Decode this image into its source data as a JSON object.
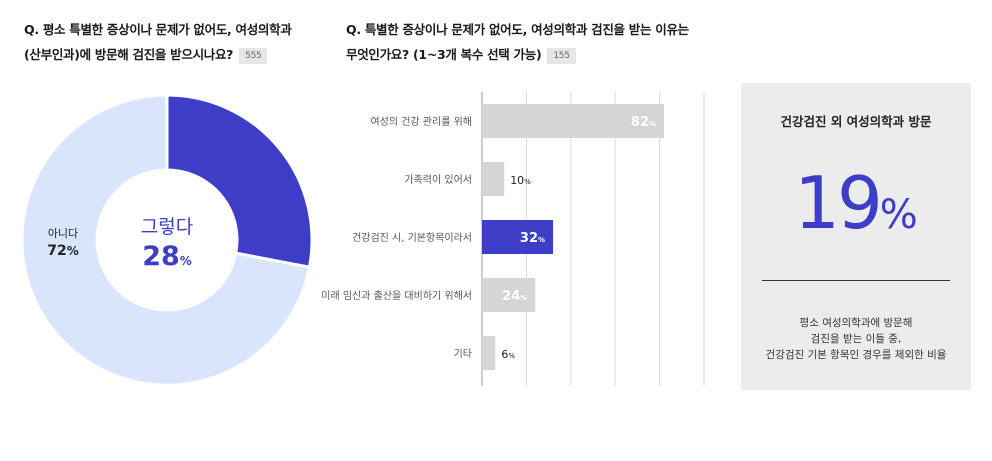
{
  "question1": {
    "text_line1": "Q. 평소 특별한 증상이나 문제가 없어도, 여성의학과",
    "text_line2": "(산부인과)에 방문해 검진을 받으시나요?",
    "respondents": "555"
  },
  "question2": {
    "text_line1": "Q. 특별한 증상이나 문제가 없어도, 여성의학과 검진을 받는 이유는",
    "text_line2": "무엇인가요? (1~3개 복수 선택 가능)",
    "respondents": "155"
  },
  "chart_data": [
    {
      "type": "pie",
      "donut": true,
      "categories": [
        "그렇다",
        "아니다"
      ],
      "values": [
        28,
        72
      ],
      "unit": "%",
      "colors": [
        "#3d3dc8",
        "#d8e5fd"
      ]
    },
    {
      "type": "bar",
      "orientation": "horizontal",
      "categories": [
        "여성의 건강 관리를 위해",
        "가족력이 있어서",
        "건강검진 시, 기본항목이라서",
        "미래 임신과 출산을 대비하기 위해서",
        "기타"
      ],
      "values": [
        82,
        10,
        32,
        24,
        6
      ],
      "unit": "%",
      "highlight_index": 2,
      "xlim": [
        0,
        100
      ],
      "grid": true,
      "colors": {
        "default": "#d5d5d5",
        "highlight": "#3d3dc8"
      }
    }
  ],
  "donut_labels": {
    "yes_label": "그렇다",
    "yes_value": "28",
    "no_label": "아니다",
    "no_value": "72",
    "unit": "%"
  },
  "panel": {
    "title": "건강검진 외 여성의학과 방문",
    "value": "19",
    "unit": "%",
    "note_line1": "평소 여성의학과에 방문해",
    "note_line2": "검진을 받는 이들 중,",
    "note_line3": "건강검진 기본 항목인 경우를 제외한 비율"
  }
}
